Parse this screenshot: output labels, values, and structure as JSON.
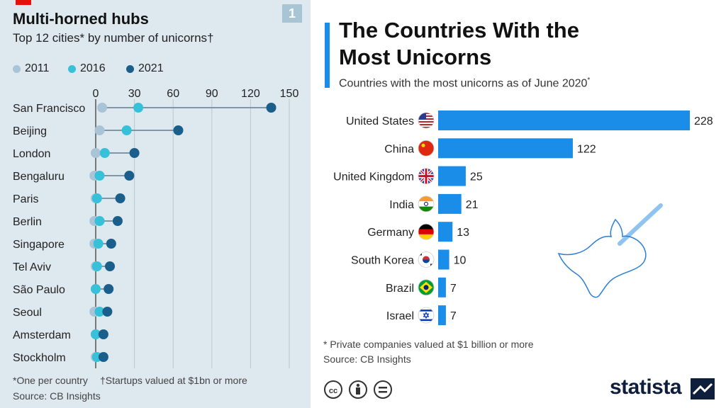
{
  "left": {
    "badge_number": "1",
    "title": "Multi-horned hubs",
    "subtitle": "Top 12 cities* by number of unicorns†",
    "legend": [
      {
        "label": "2011",
        "color": "#a9c4d6"
      },
      {
        "label": "2016",
        "color": "#37c1d9"
      },
      {
        "label": "2021",
        "color": "#1a5e8c"
      }
    ],
    "footnote1": "*One per country",
    "footnote2": "†Startups valued at $1bn or more",
    "source": "Source: CB Insights",
    "chart_data": {
      "type": "scatter",
      "subtype": "dot-plot",
      "x_ticks": [
        0,
        30,
        60,
        90,
        120,
        150
      ],
      "xlim": [
        0,
        150
      ],
      "grid": true,
      "legend_position": "top",
      "categories": [
        "San Francisco",
        "Beijing",
        "London",
        "Bengaluru",
        "Paris",
        "Berlin",
        "Singapore",
        "Tel Aviv",
        "São Paulo",
        "Seoul",
        "Amsterdam",
        "Stockholm"
      ],
      "series": [
        {
          "name": "2011",
          "values": [
            5,
            3,
            0,
            -1,
            0,
            -1,
            -1,
            0,
            0,
            -1,
            0,
            0
          ]
        },
        {
          "name": "2016",
          "values": [
            33,
            24,
            7,
            3,
            1,
            3,
            2,
            1,
            0,
            3,
            0,
            1
          ]
        },
        {
          "name": "2021",
          "values": [
            136,
            64,
            30,
            26,
            19,
            17,
            12,
            11,
            10,
            9,
            6,
            6
          ]
        }
      ]
    }
  },
  "right": {
    "title": "The Countries With the Most Unicorns",
    "subtitle": "Countries with the most unicorns as of June 2020",
    "subtitle_mark": "*",
    "note": "* Private companies valued at $1 billion or more",
    "source": "Source: CB Insights",
    "brand": "statista",
    "chart_data": {
      "type": "bar",
      "orientation": "horizontal",
      "categories": [
        "United States",
        "China",
        "United Kingdom",
        "India",
        "Germany",
        "South Korea",
        "Brazil",
        "Israel"
      ],
      "values": [
        228,
        122,
        25,
        21,
        13,
        10,
        7,
        7
      ],
      "flags": [
        "us-flag-icon",
        "china-flag-icon",
        "uk-flag-icon",
        "india-flag-icon",
        "germany-flag-icon",
        "south-korea-flag-icon",
        "brazil-flag-icon",
        "israel-flag-icon"
      ],
      "color": "#1a8de8"
    }
  }
}
